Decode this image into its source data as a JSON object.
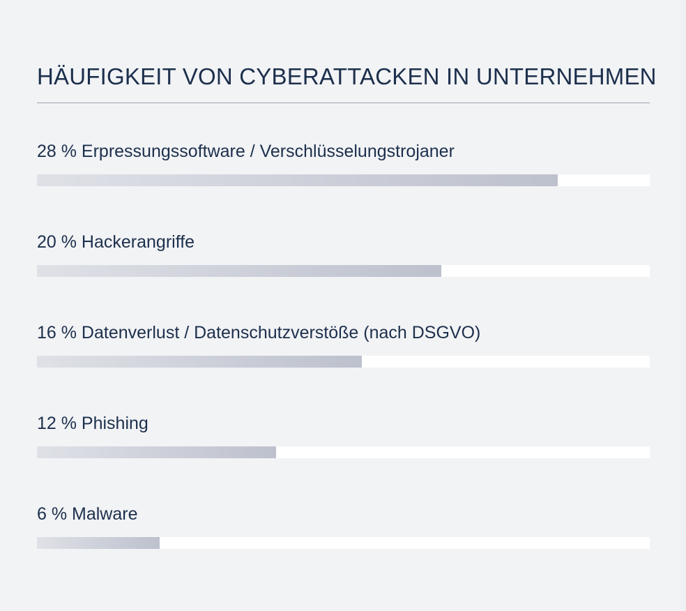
{
  "chart_data": {
    "type": "bar",
    "orientation": "horizontal",
    "title": "HÄUFIGKEIT VON CYBERATTACKEN IN UNTERNEHMEN",
    "unit": "%",
    "categories": [
      "Erpressungssoftware / Verschlüsselungstrojaner",
      "Hackerangriffe",
      "Datenverlust / Datenschutzverstöße (nach DSGVO)",
      "Phishing",
      "Malware"
    ],
    "values": [
      28,
      20,
      16,
      12,
      6
    ],
    "bar_fill_fraction": [
      0.85,
      0.66,
      0.53,
      0.39,
      0.2
    ],
    "labels": [
      "28 % Erpressungssoftware / Verschlüsselungstrojaner",
      "20 % Hackerangriffe",
      "16 % Datenverlust / Datenschutzverstöße (nach DSGVO)",
      "12 % Phishing",
      "6 % Malware"
    ],
    "grid": false,
    "legend": "none"
  },
  "colors": {
    "background": "#f2f3f5",
    "text": "#1c2f4c",
    "track": "#ffffff",
    "fill_start": "#dfe1e7",
    "fill_end": "#bdc1cd",
    "divider": "#9aa2ad"
  }
}
